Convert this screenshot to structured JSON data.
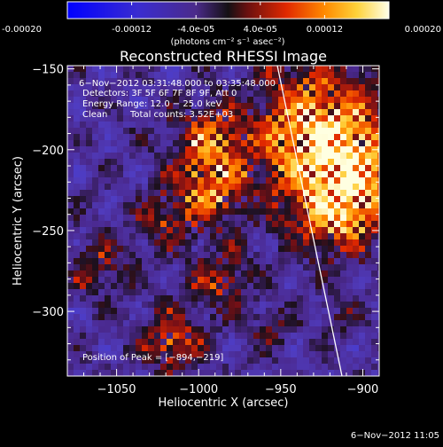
{
  "colorbar": {
    "tick_labels": [
      "-0.00020",
      "-0.00012",
      "-4.0e-05",
      "4.0e-05",
      "0.00012",
      "0.00020"
    ],
    "unit_label": "(photons cm⁻² s⁻¹ asec⁻²)",
    "range": [
      -0.0002,
      0.0002
    ]
  },
  "plot": {
    "title": "Reconstructed RHESSI Image",
    "xlabel": "Heliocentric X (arcsec)",
    "ylabel": "Heliocentric Y (arcsec)",
    "x_ticks": [
      "−1050",
      "−1000",
      "−950",
      "−900"
    ],
    "x_tick_values": [
      -1050,
      -1000,
      -950,
      -900
    ],
    "y_ticks": [
      "−150",
      "−200",
      "−250",
      "−300"
    ],
    "y_tick_values": [
      -150,
      -200,
      -250,
      -300
    ],
    "xlim": [
      -1080,
      -890
    ],
    "ylim": [
      -340,
      -148
    ]
  },
  "annotations": {
    "time_range": "6−Nov−2012 03:31:48.000 to 03:35:48.000",
    "detectors": "Detectors: 3F 5F 6F 7F 8F 9F, Att 0",
    "energy": "Energy Range: 12.0 − 25.0 keV",
    "clean_label": "Clean",
    "total_counts": "Total counts: 3.52E+03",
    "peak": "Position of Peak = [−894,−219]"
  },
  "footer": {
    "timestamp": "6−Nov−2012 11:05"
  },
  "colors": {
    "background": "#000000",
    "axis": "#ffffff",
    "limb": "#ffffff"
  }
}
